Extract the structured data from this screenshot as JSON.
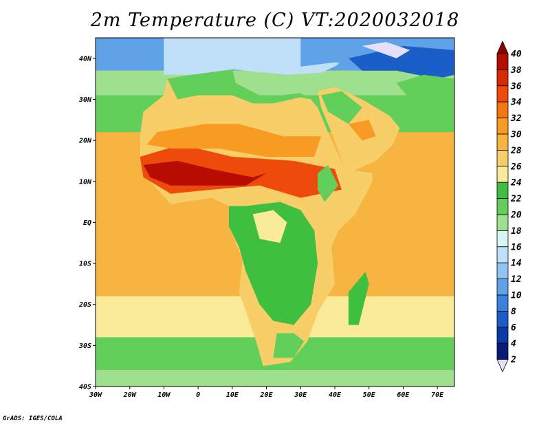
{
  "title": "2m Temperature (C) VT:2020032018",
  "credit": "GrADS: IGES/COLA",
  "map": {
    "lon_ticks": [
      "30W",
      "20W",
      "10W",
      "0",
      "10E",
      "20E",
      "30E",
      "40E",
      "50E",
      "60E",
      "70E"
    ],
    "lat_ticks": [
      "40N",
      "30N",
      "20N",
      "10N",
      "EQ",
      "10S",
      "20S",
      "30S",
      "40S"
    ],
    "lon_range": [
      -30,
      75
    ],
    "lat_range": [
      -40,
      45
    ]
  },
  "colorbar": {
    "levels": [
      "40",
      "38",
      "36",
      "34",
      "32",
      "30",
      "28",
      "26",
      "24",
      "22",
      "20",
      "18",
      "16",
      "14",
      "12",
      "10",
      "8",
      "6",
      "4",
      "2"
    ],
    "colors": [
      "#8b0000",
      "#b60d00",
      "#d62a00",
      "#ee4a0c",
      "#f5750f",
      "#f79b24",
      "#f8b440",
      "#f8ce68",
      "#faeb9b",
      "#3fbe3f",
      "#62cf5a",
      "#9ee08e",
      "#d8f5f5",
      "#bfe0f8",
      "#92c4f2",
      "#5fa2e8",
      "#3b82dc",
      "#1c5ec8",
      "#0a3aa6",
      "#0a1a78",
      "#e6e0fa"
    ]
  },
  "palette": {
    "ocean_warm": "#f8b440",
    "ocean_mild": "#faeb9b",
    "ocean_cool": "#62cf5a",
    "ocean_cold": "#9ee08e",
    "land_green": "#3fbe3f",
    "land_hot": "#ee4a0c",
    "land_veryhot": "#b60d00",
    "land_warm": "#f79b24",
    "land_tan": "#f8ce68",
    "north_cool": "#bfe0f8",
    "north_blue": "#5fa2e8",
    "north_dark": "#1c5ec8",
    "north_pale": "#e6e0fa"
  }
}
